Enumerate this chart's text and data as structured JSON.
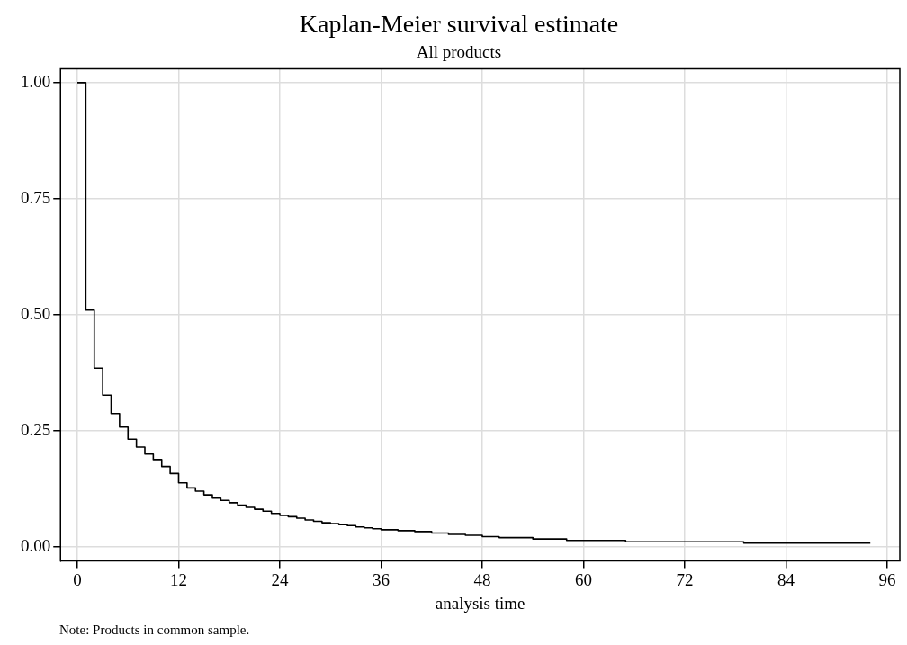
{
  "chart_data": {
    "type": "step",
    "title": "Kaplan-Meier survival estimate",
    "subtitle": "All products",
    "xlabel": "analysis time",
    "annotations": [
      "Note: Products in common sample."
    ],
    "x": [
      0,
      1,
      2,
      3,
      4,
      5,
      6,
      7,
      8,
      9,
      10,
      11,
      12,
      13,
      14,
      15,
      16,
      17,
      18,
      19,
      20,
      21,
      22,
      23,
      24,
      25,
      26,
      27,
      28,
      29,
      30,
      31,
      32,
      33,
      34,
      35,
      36,
      38,
      40,
      42,
      44,
      46,
      48,
      50,
      54,
      58,
      65,
      79,
      94
    ],
    "series": [
      {
        "color": "#000000",
        "values": [
          1.0,
          0.51,
          0.385,
          0.327,
          0.287,
          0.258,
          0.232,
          0.215,
          0.2,
          0.188,
          0.173,
          0.158,
          0.138,
          0.127,
          0.12,
          0.112,
          0.105,
          0.1,
          0.095,
          0.09,
          0.085,
          0.081,
          0.077,
          0.072,
          0.068,
          0.065,
          0.062,
          0.058,
          0.055,
          0.052,
          0.05,
          0.048,
          0.046,
          0.043,
          0.041,
          0.039,
          0.037,
          0.035,
          0.033,
          0.03,
          0.027,
          0.025,
          0.022,
          0.02,
          0.017,
          0.014,
          0.011,
          0.008,
          0.008
        ]
      }
    ],
    "xlim": [
      -2,
      97.5
    ],
    "xticks": [
      0,
      12,
      24,
      36,
      48,
      60,
      72,
      84,
      96
    ],
    "ylim": [
      -0.03,
      1.03
    ],
    "yticks": [
      {
        "value": 0,
        "label": "0.00"
      },
      {
        "value": 0.25,
        "label": "0.25"
      },
      {
        "value": 0.5,
        "label": "0.50"
      },
      {
        "value": 0.75,
        "label": "0.75"
      },
      {
        "value": 1,
        "label": "1.00"
      }
    ],
    "grid": true,
    "legend": false,
    "marker": "none",
    "line_style": "solid"
  }
}
